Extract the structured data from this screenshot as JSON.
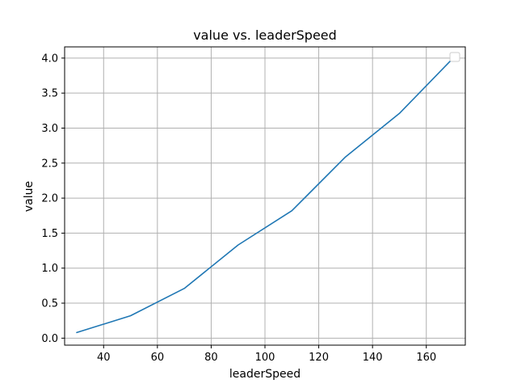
{
  "chart_data": {
    "type": "line",
    "title": "value vs. leaderSpeed",
    "xlabel": "leaderSpeed",
    "ylabel": "value",
    "xlim": [
      25.5,
      174.5
    ],
    "ylim": [
      -0.1,
      4.16
    ],
    "xticks": [
      40,
      60,
      80,
      100,
      120,
      140,
      160
    ],
    "yticks": [
      0.0,
      0.5,
      1.0,
      1.5,
      2.0,
      2.5,
      3.0,
      3.5,
      4.0
    ],
    "xtick_labels": [
      "40",
      "60",
      "80",
      "100",
      "120",
      "140",
      "160"
    ],
    "ytick_labels": [
      "0.0",
      "0.5",
      "1.0",
      "1.5",
      "2.0",
      "2.5",
      "3.0",
      "3.5",
      "4.0"
    ],
    "grid": true,
    "legend": {
      "position": "top-right",
      "entries": []
    },
    "series": [
      {
        "name": "",
        "color": "#1f77b4",
        "x": [
          30,
          50,
          70,
          90,
          110,
          130,
          150,
          170
        ],
        "y": [
          0.08,
          0.32,
          0.71,
          1.33,
          1.82,
          2.59,
          3.21,
          4.0
        ]
      }
    ]
  }
}
